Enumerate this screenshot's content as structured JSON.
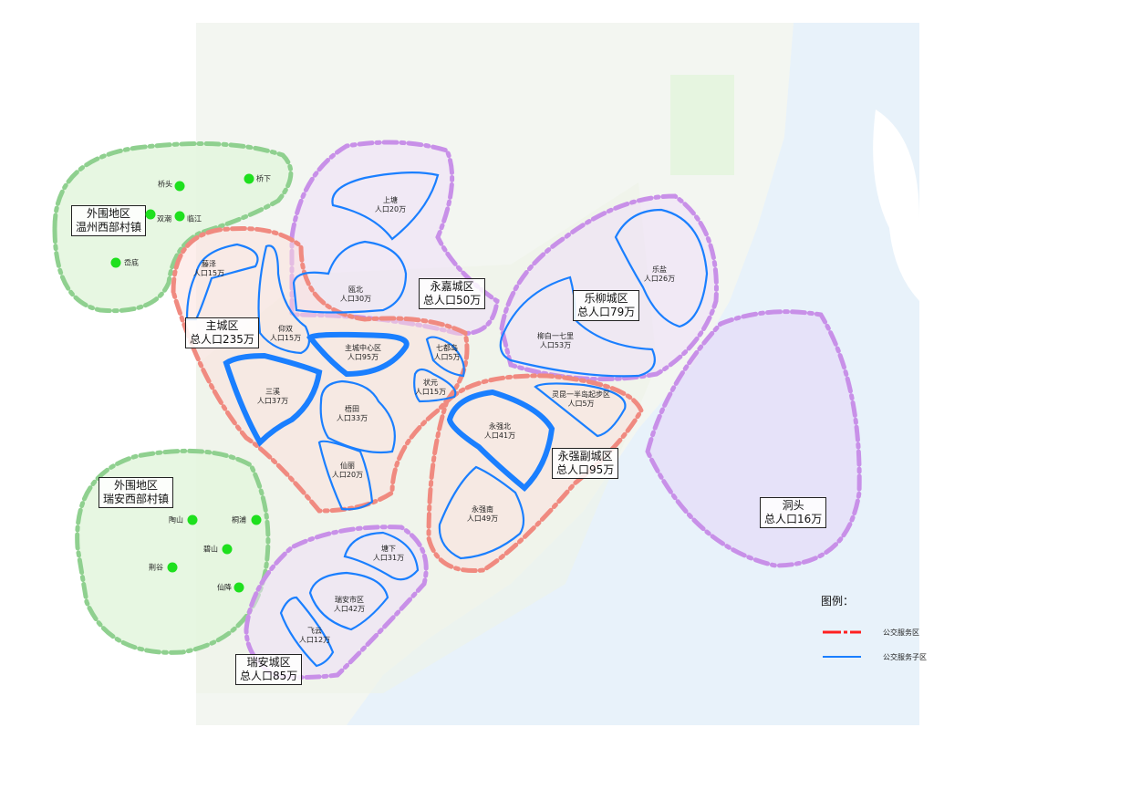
{
  "colors": {
    "service_zone": "#ff2020",
    "sub_zone": "#1a7fff",
    "village_dot": "#1ee01e",
    "outer_zone": "#8fd08f",
    "zone_purple": "#c890e8",
    "zone_red": "#f08a80",
    "sea": "#e8f2fa"
  },
  "zones": {
    "wenzhou_west": {
      "line1": "外围地区",
      "line2": "温州西部村镇"
    },
    "ruian_west": {
      "line1": "外围地区",
      "line2": "瑞安西部村镇"
    },
    "main": {
      "line1": "主城区",
      "line2": "总人口235万"
    },
    "yongjia": {
      "line1": "永嘉城区",
      "line2": "总人口50万"
    },
    "leliu": {
      "line1": "乐柳城区",
      "line2": "总人口79万"
    },
    "yongqiang": {
      "line1": "永强副城区",
      "line2": "总人口95万"
    },
    "dongtou": {
      "line1": "洞头",
      "line2": "总人口16万"
    },
    "ruian": {
      "line1": "瑞安城区",
      "line2": "总人口85万"
    }
  },
  "subzones": [
    {
      "name": "上塘",
      "pop": "人口20万"
    },
    {
      "name": "瓯北",
      "pop": "人口30万"
    },
    {
      "name": "藤泽",
      "pop": "人口15万"
    },
    {
      "name": "仰双",
      "pop": "人口15万"
    },
    {
      "name": "主城中心区",
      "pop": "人口95万"
    },
    {
      "name": "七都岛",
      "pop": "人口5万"
    },
    {
      "name": "状元",
      "pop": "人口15万"
    },
    {
      "name": "三溪",
      "pop": "人口37万"
    },
    {
      "name": "梧田",
      "pop": "人口33万"
    },
    {
      "name": "仙丽",
      "pop": "人口20万"
    },
    {
      "name": "永强北",
      "pop": "人口41万"
    },
    {
      "name": "灵昆一半岛起步区",
      "pop": "人口5万"
    },
    {
      "name": "永强南",
      "pop": "人口49万"
    },
    {
      "name": "柳白一七里",
      "pop": "人口53万"
    },
    {
      "name": "乐盐",
      "pop": "人口26万"
    },
    {
      "name": "塘下",
      "pop": "人口31万"
    },
    {
      "name": "瑞安市区",
      "pop": "人口42万"
    },
    {
      "name": "飞云",
      "pop": "人口12万"
    }
  ],
  "villages": [
    "桥头",
    "桥下",
    "双潮",
    "临江",
    "岙底",
    "陶山",
    "桐浦",
    "碧山",
    "荆谷",
    "仙降"
  ],
  "legend": {
    "title": "图例：",
    "items": [
      {
        "label": "公交服务区",
        "style": "red-dash-dot"
      },
      {
        "label": "公交服务子区",
        "style": "blue-solid"
      }
    ]
  }
}
